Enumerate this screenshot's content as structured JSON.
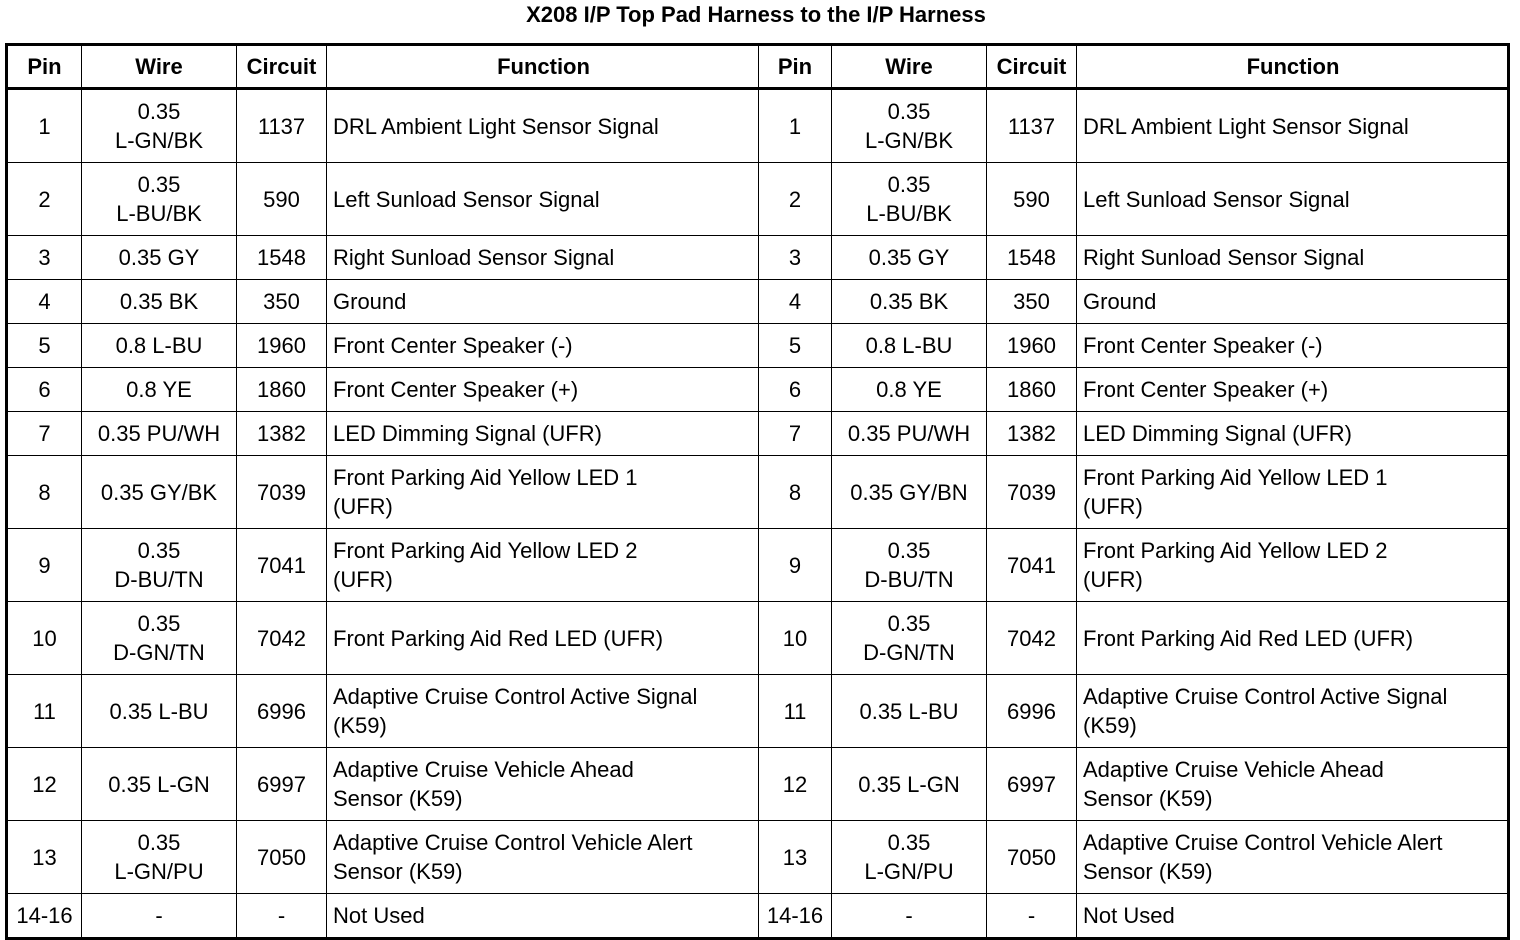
{
  "title": "X208 I/P Top Pad Harness to the I/P Harness",
  "table": {
    "header": [
      "Pin",
      "Wire",
      "Circuit",
      "Function",
      "Pin",
      "Wire",
      "Circuit",
      "Function"
    ],
    "rows": [
      [
        "1",
        "0.35\nL-GN/BK",
        "1137",
        "DRL Ambient Light Sensor Signal",
        "1",
        "0.35\nL-GN/BK",
        "1137",
        "DRL Ambient Light Sensor Signal"
      ],
      [
        "2",
        "0.35\nL-BU/BK",
        "590",
        "Left Sunload Sensor Signal",
        "2",
        "0.35\nL-BU/BK",
        "590",
        "Left Sunload Sensor Signal"
      ],
      [
        "3",
        "0.35 GY",
        "1548",
        "Right Sunload Sensor Signal",
        "3",
        "0.35 GY",
        "1548",
        "Right Sunload Sensor Signal"
      ],
      [
        "4",
        "0.35 BK",
        "350",
        "Ground",
        "4",
        "0.35 BK",
        "350",
        "Ground"
      ],
      [
        "5",
        "0.8 L-BU",
        "1960",
        "Front Center Speaker (-)",
        "5",
        "0.8 L-BU",
        "1960",
        "Front Center Speaker (-)"
      ],
      [
        "6",
        "0.8 YE",
        "1860",
        "Front Center Speaker (+)",
        "6",
        "0.8 YE",
        "1860",
        "Front Center Speaker (+)"
      ],
      [
        "7",
        "0.35 PU/WH",
        "1382",
        "LED Dimming Signal (UFR)",
        "7",
        "0.35 PU/WH",
        "1382",
        "LED Dimming Signal (UFR)"
      ],
      [
        "8",
        "0.35 GY/BK",
        "7039",
        "Front Parking Aid Yellow LED 1\n(UFR)",
        "8",
        "0.35 GY/BN",
        "7039",
        "Front Parking Aid Yellow LED 1\n(UFR)"
      ],
      [
        "9",
        "0.35\nD-BU/TN",
        "7041",
        "Front Parking Aid Yellow LED 2\n(UFR)",
        "9",
        "0.35\nD-BU/TN",
        "7041",
        "Front Parking Aid Yellow LED 2\n(UFR)"
      ],
      [
        "10",
        "0.35\nD-GN/TN",
        "7042",
        "Front Parking Aid Red LED (UFR)",
        "10",
        "0.35\nD-GN/TN",
        "7042",
        "Front Parking Aid Red LED (UFR)"
      ],
      [
        "11",
        "0.35 L-BU",
        "6996",
        "Adaptive Cruise Control Active Signal\n(K59)",
        "11",
        "0.35 L-BU",
        "6996",
        "Adaptive Cruise Control Active Signal\n(K59)"
      ],
      [
        "12",
        "0.35 L-GN",
        "6997",
        "Adaptive Cruise Vehicle Ahead\nSensor (K59)",
        "12",
        "0.35 L-GN",
        "6997",
        "Adaptive Cruise Vehicle Ahead\nSensor (K59)"
      ],
      [
        "13",
        "0.35\nL-GN/PU",
        "7050",
        "Adaptive Cruise Control Vehicle Alert\nSensor (K59)",
        "13",
        "0.35\nL-GN/PU",
        "7050",
        "Adaptive Cruise Control Vehicle Alert\nSensor (K59)"
      ],
      [
        "14-16",
        "-",
        "-",
        "Not Used",
        "14-16",
        "-",
        "-",
        "Not Used"
      ]
    ]
  }
}
